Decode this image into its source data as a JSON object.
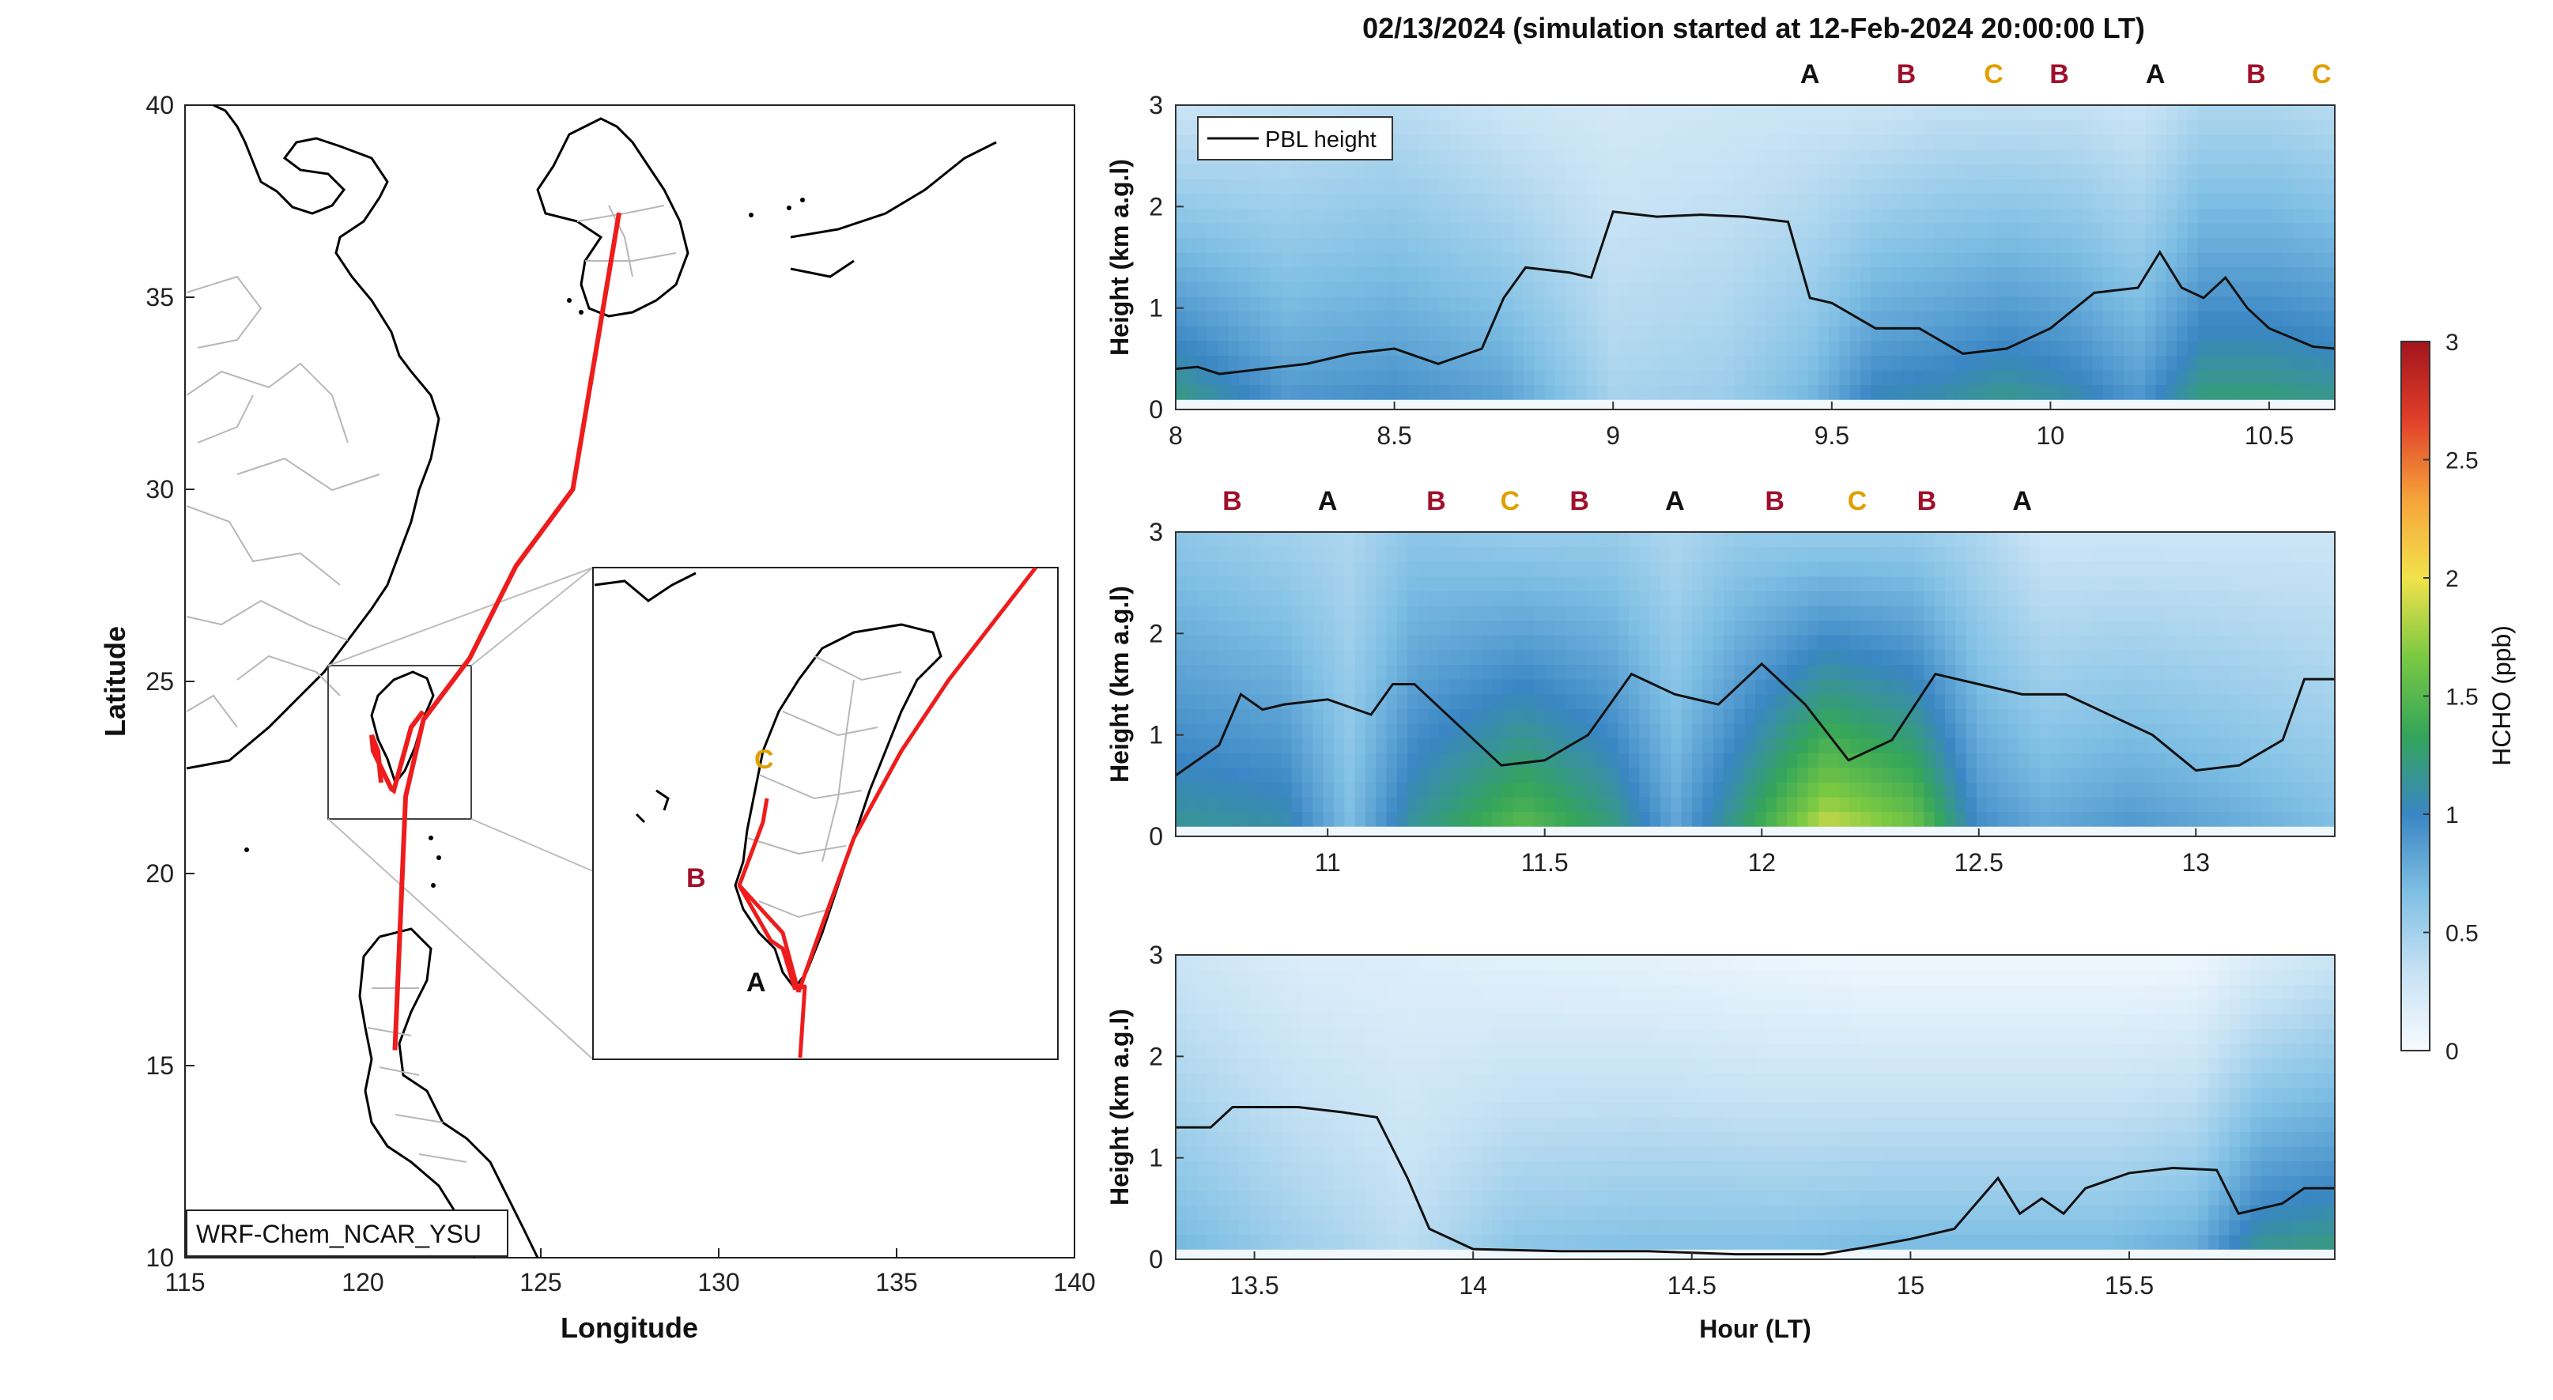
{
  "figure": {
    "title": "02/13/2024 (simulation started at 12-Feb-2024 20:00:00 LT)"
  },
  "map": {
    "xlabel": "Longitude",
    "ylabel": "Latitude",
    "xticks": [
      115,
      120,
      125,
      130,
      135,
      140
    ],
    "yticks": [
      10,
      15,
      20,
      25,
      30,
      35,
      40
    ],
    "xlim": [
      115,
      140
    ],
    "ylim": [
      10,
      40
    ],
    "model_label": "WRF-Chem_NCAR_YSU",
    "track_color": "#ee1c1c",
    "track": [
      [
        120.9,
        15.4
      ],
      [
        121.2,
        22.0
      ],
      [
        121.7,
        24.0
      ],
      [
        123.0,
        25.6
      ],
      [
        124.3,
        28.0
      ],
      [
        125.9,
        30.0
      ],
      [
        127.2,
        37.2
      ]
    ],
    "inset_region": {
      "lon": [
        119.0,
        123.0
      ],
      "lat": [
        21.5,
        26.0
      ]
    },
    "site_labels": [
      {
        "text": "A",
        "color": "#111111"
      },
      {
        "text": "B",
        "color": "#a0102a"
      },
      {
        "text": "C",
        "color": "#e0a000"
      }
    ]
  },
  "colorbar": {
    "label": "HCHO (ppb)",
    "ticks": [
      0,
      0.5,
      1,
      1.5,
      2,
      2.5,
      3
    ],
    "range": [
      0,
      3
    ],
    "colors": [
      "#f7fbff",
      "#c6e2f4",
      "#7fbfe4",
      "#3a86c4",
      "#34a55a",
      "#7ac943",
      "#f2e24a",
      "#f6a33a",
      "#e0402a",
      "#a3141c"
    ]
  },
  "chart_data": [
    {
      "type": "heatmap",
      "xlabel": "",
      "ylabel": "Height (km a.g.l)",
      "xlim": [
        8.0,
        10.65
      ],
      "ylim": [
        0,
        3
      ],
      "xticks": [
        8,
        8.5,
        9,
        9.5,
        10,
        10.5
      ],
      "yticks": [
        0,
        1,
        2,
        3
      ],
      "legend": "PBL height",
      "legend_position": "top-left",
      "site_markers": [
        {
          "label": "A",
          "x": 9.45
        },
        {
          "label": "B",
          "x": 9.67
        },
        {
          "label": "C",
          "x": 9.87
        },
        {
          "label": "B",
          "x": 10.02
        },
        {
          "label": "A",
          "x": 10.24
        },
        {
          "label": "B",
          "x": 10.47
        },
        {
          "label": "C",
          "x": 10.62
        }
      ],
      "pbl_height": {
        "x": [
          8.0,
          8.05,
          8.1,
          8.2,
          8.3,
          8.4,
          8.5,
          8.6,
          8.7,
          8.75,
          8.8,
          8.9,
          8.95,
          9.0,
          9.1,
          9.2,
          9.3,
          9.4,
          9.45,
          9.5,
          9.6,
          9.7,
          9.8,
          9.9,
          10.0,
          10.1,
          10.2,
          10.25,
          10.3,
          10.35,
          10.4,
          10.45,
          10.5,
          10.6,
          10.65
        ],
        "y": [
          0.4,
          0.42,
          0.35,
          0.4,
          0.45,
          0.55,
          0.6,
          0.45,
          0.6,
          1.1,
          1.4,
          1.35,
          1.3,
          1.95,
          1.9,
          1.92,
          1.9,
          1.85,
          1.1,
          1.05,
          0.8,
          0.8,
          0.55,
          0.6,
          0.8,
          1.15,
          1.2,
          1.55,
          1.2,
          1.1,
          1.3,
          1.0,
          0.8,
          0.62,
          0.6
        ]
      },
      "hcho": {
        "times": [
          8.0,
          8.25,
          8.5,
          8.75,
          9.0,
          9.25,
          9.45,
          9.6,
          9.75,
          9.9,
          10.05,
          10.2,
          10.35,
          10.5,
          10.65
        ],
        "bottom": [
          1.3,
          0.95,
          1.0,
          0.9,
          0.5,
          0.55,
          0.75,
          1.1,
          1.15,
          1.25,
          1.15,
          0.95,
          1.3,
          1.3,
          1.25
        ],
        "top": [
          0.3,
          0.35,
          0.4,
          0.3,
          0.25,
          0.28,
          0.3,
          0.3,
          0.35,
          0.35,
          0.35,
          0.3,
          0.45,
          0.45,
          0.4
        ]
      }
    },
    {
      "type": "heatmap",
      "xlabel": "",
      "ylabel": "Height (km a.g.l)",
      "xlim": [
        10.65,
        13.32
      ],
      "ylim": [
        0,
        3
      ],
      "xticks": [
        11,
        11.5,
        12,
        12.5,
        13
      ],
      "yticks": [
        0,
        1,
        2,
        3
      ],
      "site_markers": [
        {
          "label": "B",
          "x": 10.78
        },
        {
          "label": "A",
          "x": 11.0
        },
        {
          "label": "B",
          "x": 11.25
        },
        {
          "label": "C",
          "x": 11.42
        },
        {
          "label": "B",
          "x": 11.58
        },
        {
          "label": "A",
          "x": 11.8
        },
        {
          "label": "B",
          "x": 12.03
        },
        {
          "label": "C",
          "x": 12.22
        },
        {
          "label": "B",
          "x": 12.38
        },
        {
          "label": "A",
          "x": 12.6
        }
      ],
      "pbl_height": {
        "x": [
          10.65,
          10.7,
          10.75,
          10.8,
          10.85,
          10.9,
          11.0,
          11.1,
          11.15,
          11.2,
          11.3,
          11.4,
          11.5,
          11.6,
          11.7,
          11.8,
          11.9,
          12.0,
          12.1,
          12.2,
          12.3,
          12.4,
          12.5,
          12.6,
          12.7,
          12.8,
          12.9,
          13.0,
          13.1,
          13.2,
          13.25,
          13.32
        ],
        "y": [
          0.6,
          0.75,
          0.9,
          1.4,
          1.25,
          1.3,
          1.35,
          1.2,
          1.5,
          1.5,
          1.1,
          0.7,
          0.75,
          1.0,
          1.6,
          1.4,
          1.3,
          1.7,
          1.3,
          0.75,
          0.95,
          1.6,
          1.5,
          1.4,
          1.4,
          1.2,
          1.0,
          0.65,
          0.7,
          0.95,
          1.55,
          1.55
        ]
      },
      "hcho": {
        "times": [
          10.65,
          10.9,
          11.05,
          11.2,
          11.45,
          11.65,
          11.8,
          11.95,
          12.15,
          12.35,
          12.5,
          12.65,
          12.85,
          13.05,
          13.32
        ],
        "bottom": [
          1.2,
          1.15,
          0.7,
          1.2,
          1.6,
          1.3,
          0.85,
          1.3,
          2.0,
          1.7,
          1.0,
          0.85,
          0.95,
          0.85,
          0.7
        ],
        "top": [
          0.6,
          0.5,
          0.45,
          0.6,
          0.55,
          0.55,
          0.45,
          0.55,
          0.55,
          0.55,
          0.45,
          0.3,
          0.3,
          0.3,
          0.3
        ]
      }
    },
    {
      "type": "heatmap",
      "xlabel": "Hour (LT)",
      "ylabel": "Height (km a.g.l)",
      "xlim": [
        13.32,
        15.97
      ],
      "ylim": [
        0,
        3
      ],
      "xticks": [
        13.5,
        14,
        14.5,
        15,
        15.5
      ],
      "yticks": [
        0,
        1,
        2,
        3
      ],
      "pbl_height": {
        "x": [
          13.32,
          13.4,
          13.45,
          13.5,
          13.6,
          13.7,
          13.78,
          13.85,
          13.9,
          14.0,
          14.2,
          14.4,
          14.6,
          14.8,
          14.9,
          15.0,
          15.1,
          15.2,
          15.25,
          15.3,
          15.35,
          15.4,
          15.5,
          15.6,
          15.7,
          15.75,
          15.8,
          15.85,
          15.9,
          15.97
        ],
        "y": [
          1.3,
          1.3,
          1.5,
          1.5,
          1.5,
          1.45,
          1.4,
          0.8,
          0.3,
          0.1,
          0.08,
          0.08,
          0.05,
          0.05,
          0.12,
          0.2,
          0.3,
          0.8,
          0.45,
          0.6,
          0.45,
          0.7,
          0.85,
          0.9,
          0.88,
          0.45,
          0.5,
          0.55,
          0.7,
          0.7
        ]
      },
      "hcho": {
        "times": [
          13.32,
          13.6,
          13.85,
          14.1,
          14.4,
          14.7,
          14.95,
          15.2,
          15.45,
          15.65,
          15.8,
          15.97
        ],
        "bottom": [
          0.75,
          0.55,
          0.4,
          0.65,
          0.7,
          0.7,
          0.75,
          0.75,
          0.75,
          0.85,
          1.25,
          1.3
        ],
        "top": [
          0.3,
          0.2,
          0.18,
          0.14,
          0.12,
          0.08,
          0.05,
          0.05,
          0.05,
          0.06,
          0.2,
          0.3
        ]
      }
    }
  ]
}
